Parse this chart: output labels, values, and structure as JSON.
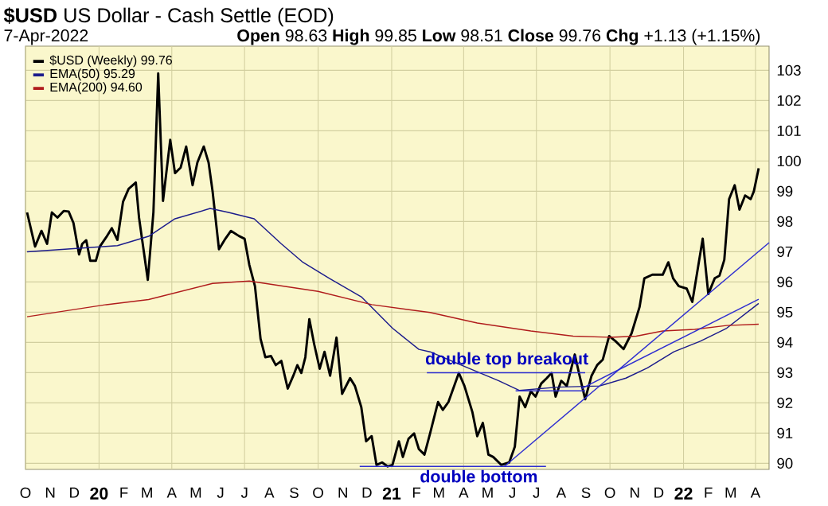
{
  "chart_data": {
    "type": "line",
    "title": "**$USD** US Dollar - Cash Settle (EOD)",
    "subtitle": "7-Apr-2022",
    "annotations": [
      "**Open** 98.63 **High** 99.85 **Low** 98.51 **Close** 99.76 **Chg** +1.13 (+1.15%)",
      {
        "text": "double top breakout",
        "x": "2021-05-25",
        "y": 93.0
      },
      {
        "text": "double bottom",
        "x": "2021-04-20",
        "y": 89.9
      }
    ],
    "xlim": [
      "2019-10-01",
      "2022-04-18"
    ],
    "ylim": [
      89.8,
      103.8
    ],
    "yticks": [
      90,
      91,
      92,
      93,
      94,
      95,
      96,
      97,
      98,
      99,
      100,
      101,
      102,
      103
    ],
    "xticks": [
      {
        "value": "2019-10-01",
        "label": "O"
      },
      {
        "value": "2019-11-01",
        "label": "N"
      },
      {
        "value": "2019-12-01",
        "label": "D"
      },
      {
        "value": "2020-01-01",
        "label": "20"
      },
      {
        "value": "2020-02-01",
        "label": "F"
      },
      {
        "value": "2020-03-01",
        "label": "M"
      },
      {
        "value": "2020-04-01",
        "label": "A"
      },
      {
        "value": "2020-05-01",
        "label": "M"
      },
      {
        "value": "2020-06-01",
        "label": "J"
      },
      {
        "value": "2020-07-01",
        "label": "J"
      },
      {
        "value": "2020-08-01",
        "label": "A"
      },
      {
        "value": "2020-09-01",
        "label": "S"
      },
      {
        "value": "2020-10-01",
        "label": "O"
      },
      {
        "value": "2020-11-01",
        "label": "N"
      },
      {
        "value": "2020-12-01",
        "label": "D"
      },
      {
        "value": "2021-01-01",
        "label": "21"
      },
      {
        "value": "2021-02-01",
        "label": "F"
      },
      {
        "value": "2021-03-01",
        "label": "M"
      },
      {
        "value": "2021-04-01",
        "label": "A"
      },
      {
        "value": "2021-05-01",
        "label": "M"
      },
      {
        "value": "2021-06-01",
        "label": "J"
      },
      {
        "value": "2021-07-01",
        "label": "J"
      },
      {
        "value": "2021-08-01",
        "label": "A"
      },
      {
        "value": "2021-09-01",
        "label": "S"
      },
      {
        "value": "2021-10-01",
        "label": "O"
      },
      {
        "value": "2021-11-01",
        "label": "N"
      },
      {
        "value": "2021-12-01",
        "label": "D"
      },
      {
        "value": "2022-01-01",
        "label": "22"
      },
      {
        "value": "2022-02-01",
        "label": "F"
      },
      {
        "value": "2022-03-01",
        "label": "M"
      },
      {
        "value": "2022-04-01",
        "label": "A"
      }
    ],
    "grid": true,
    "legend": "top left",
    "series": [
      {
        "name": "$USD (Weekly) 99.76",
        "color": "#000000",
        "x": [
          "2019-10-03",
          "2019-10-13",
          "2019-10-21",
          "2019-10-28",
          "2019-11-03",
          "2019-11-10",
          "2019-11-18",
          "2019-11-24",
          "2019-11-30",
          "2019-12-07",
          "2019-12-11",
          "2019-12-16",
          "2019-12-21",
          "2019-12-28",
          "2020-01-02",
          "2020-01-10",
          "2020-01-17",
          "2020-01-24",
          "2020-01-31",
          "2020-02-07",
          "2020-02-16",
          "2020-02-20",
          "2020-03-02",
          "2020-03-09",
          "2020-03-15",
          "2020-03-21",
          "2020-03-30",
          "2020-04-05",
          "2020-04-12",
          "2020-04-19",
          "2020-04-27",
          "2020-05-03",
          "2020-05-11",
          "2020-05-17",
          "2020-05-22",
          "2020-05-30",
          "2020-06-07",
          "2020-06-14",
          "2020-06-24",
          "2020-07-01",
          "2020-07-07",
          "2020-07-14",
          "2020-07-21",
          "2020-07-27",
          "2020-08-03",
          "2020-08-09",
          "2020-08-16",
          "2020-08-24",
          "2020-08-31",
          "2020-09-05",
          "2020-09-10",
          "2020-09-15",
          "2020-09-20",
          "2020-09-26",
          "2020-10-03",
          "2020-10-09",
          "2020-10-16",
          "2020-10-24",
          "2020-10-31",
          "2020-11-10",
          "2020-11-16",
          "2020-11-24",
          "2020-11-30",
          "2020-12-07",
          "2020-12-13",
          "2020-12-20",
          "2020-12-27",
          "2021-01-02",
          "2021-01-10",
          "2021-01-15",
          "2021-01-22",
          "2021-01-29",
          "2021-02-04",
          "2021-02-11",
          "2021-02-18",
          "2021-02-28",
          "2021-03-06",
          "2021-03-13",
          "2021-03-26",
          "2021-04-02",
          "2021-04-12",
          "2021-04-18",
          "2021-04-25",
          "2021-05-02",
          "2021-05-08",
          "2021-05-18",
          "2021-05-28",
          "2021-06-04",
          "2021-06-10",
          "2021-06-17",
          "2021-06-24",
          "2021-06-30",
          "2021-07-07",
          "2021-07-14",
          "2021-07-20",
          "2021-07-25",
          "2021-08-01",
          "2021-08-08",
          "2021-08-18",
          "2021-08-24",
          "2021-08-31",
          "2021-09-08",
          "2021-09-15",
          "2021-09-22",
          "2021-09-30",
          "2021-10-08",
          "2021-10-18",
          "2021-10-28",
          "2021-11-07",
          "2021-11-13",
          "2021-11-23",
          "2021-12-06",
          "2021-12-13",
          "2021-12-19",
          "2021-12-26",
          "2022-01-05",
          "2022-01-12",
          "2022-01-25",
          "2022-02-01",
          "2022-02-09",
          "2022-02-15",
          "2022-02-21",
          "2022-02-27",
          "2022-03-06",
          "2022-03-12",
          "2022-03-19",
          "2022-03-26",
          "2022-03-30",
          "2022-04-05"
        ],
        "values": [
          98.3,
          97.17,
          97.69,
          97.26,
          98.3,
          98.13,
          98.35,
          98.33,
          97.95,
          96.91,
          97.26,
          97.38,
          96.7,
          96.7,
          97.17,
          97.48,
          97.78,
          97.39,
          98.65,
          99.08,
          99.29,
          98.13,
          96.07,
          98.3,
          102.9,
          98.68,
          100.7,
          99.6,
          99.78,
          100.48,
          99.2,
          99.95,
          100.48,
          99.95,
          99.0,
          97.08,
          97.43,
          97.69,
          97.52,
          97.43,
          96.56,
          95.86,
          94.12,
          93.51,
          93.55,
          93.25,
          93.39,
          92.47,
          92.9,
          93.25,
          92.99,
          93.51,
          94.77,
          93.95,
          93.13,
          93.69,
          92.9,
          94.16,
          92.3,
          92.82,
          92.56,
          91.86,
          90.73,
          90.9,
          89.95,
          90.03,
          89.9,
          89.95,
          90.73,
          90.21,
          90.81,
          90.99,
          90.47,
          90.29,
          90.99,
          92.03,
          91.77,
          92.03,
          92.99,
          92.56,
          91.69,
          90.9,
          91.34,
          90.29,
          90.21,
          89.95,
          90.03,
          90.55,
          92.21,
          91.86,
          92.38,
          92.21,
          92.64,
          92.82,
          92.99,
          92.21,
          92.73,
          92.56,
          93.6,
          92.9,
          92.12,
          92.9,
          93.25,
          93.43,
          94.21,
          94.04,
          93.78,
          94.3,
          95.17,
          96.12,
          96.24,
          96.24,
          96.65,
          96.12,
          95.86,
          95.78,
          95.34,
          97.43,
          95.6,
          96.12,
          96.21,
          96.73,
          98.74,
          99.2,
          98.39,
          98.86,
          98.74,
          99.0,
          99.76
        ]
      },
      {
        "name": "EMA(50) 95.29",
        "color": "#1c1c8c",
        "x": [
          "2019-10-03",
          "2020-01-24",
          "2020-03-03",
          "2020-04-05",
          "2020-05-19",
          "2020-06-11",
          "2020-07-13",
          "2020-08-16",
          "2020-09-12",
          "2020-10-15",
          "2020-11-24",
          "2021-01-02",
          "2021-02-04",
          "2021-02-18",
          "2021-03-29",
          "2021-05-15",
          "2021-06-10",
          "2021-07-27",
          "2021-09-18",
          "2021-10-21",
          "2021-11-17",
          "2021-12-20",
          "2022-01-22",
          "2022-02-24",
          "2022-04-05"
        ],
        "values": [
          97.0,
          97.2,
          97.51,
          98.09,
          98.43,
          98.3,
          98.09,
          97.26,
          96.65,
          96.12,
          95.51,
          94.47,
          93.77,
          93.69,
          93.25,
          92.73,
          92.41,
          92.52,
          92.56,
          92.82,
          93.16,
          93.69,
          94.04,
          94.47,
          95.29
        ]
      },
      {
        "name": "EMA(200) 94.60",
        "color": "#b01c1c",
        "x": [
          "2019-10-03",
          "2020-01-10",
          "2020-03-03",
          "2020-05-22",
          "2020-07-07",
          "2020-10-01",
          "2020-12-07",
          "2021-02-18",
          "2021-04-18",
          "2021-06-24",
          "2021-08-16",
          "2021-10-01",
          "2021-11-03",
          "2021-12-06",
          "2022-01-15",
          "2022-02-24",
          "2022-04-05"
        ],
        "values": [
          94.85,
          95.25,
          95.42,
          95.95,
          96.03,
          95.69,
          95.25,
          94.99,
          94.64,
          94.38,
          94.21,
          94.17,
          94.21,
          94.38,
          94.43,
          94.56,
          94.6
        ]
      },
      {
        "type": "line",
        "color": "#2e2ed0",
        "x": [
          "2021-02-14",
          "2021-08-31"
        ],
        "values": [
          93.0,
          93.0
        ]
      },
      {
        "type": "line",
        "color": "#2e2ed0",
        "x": [
          "2021-06-05",
          "2021-08-31"
        ],
        "values": [
          92.4,
          92.4
        ]
      },
      {
        "type": "line",
        "color": "#2e2ed0",
        "x": [
          "2020-11-22",
          "2021-07-13"
        ],
        "values": [
          89.9,
          89.9
        ]
      },
      {
        "type": "line",
        "color": "#2e2ed0",
        "x": [
          "2021-05-22",
          "2022-04-18"
        ],
        "values": [
          89.9,
          97.3
        ]
      },
      {
        "type": "line",
        "color": "#2e2ed0",
        "x": [
          "2021-08-26",
          "2022-04-05"
        ],
        "values": [
          92.47,
          95.43
        ]
      }
    ]
  }
}
